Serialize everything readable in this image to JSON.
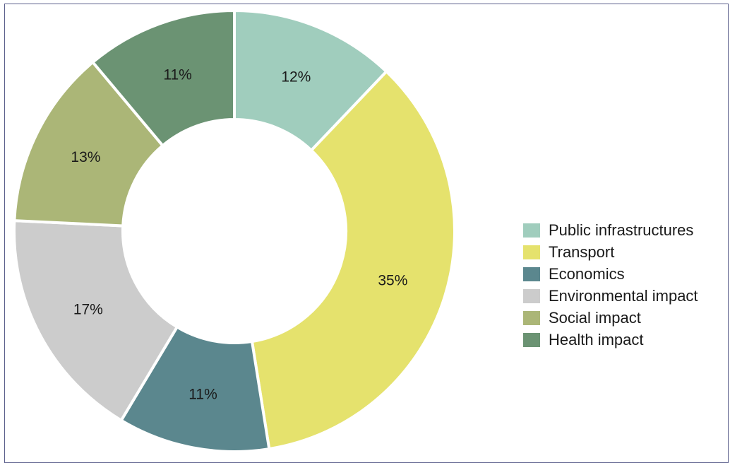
{
  "chart_data": {
    "type": "pie",
    "donut": true,
    "title": "",
    "legend_position": "right",
    "categories": [
      "Public infrastructures",
      "Transport",
      "Economics",
      "Environmental impact",
      "Social impact",
      "Health impact"
    ],
    "values": [
      12,
      35,
      11,
      17,
      13,
      11
    ],
    "data_labels": [
      "12%",
      "35%",
      "11%",
      "17%",
      "13%",
      "11%"
    ],
    "colors": [
      "#a0cdbd",
      "#e5e26d",
      "#5b878e",
      "#cccccc",
      "#abb677",
      "#6b9373"
    ]
  }
}
